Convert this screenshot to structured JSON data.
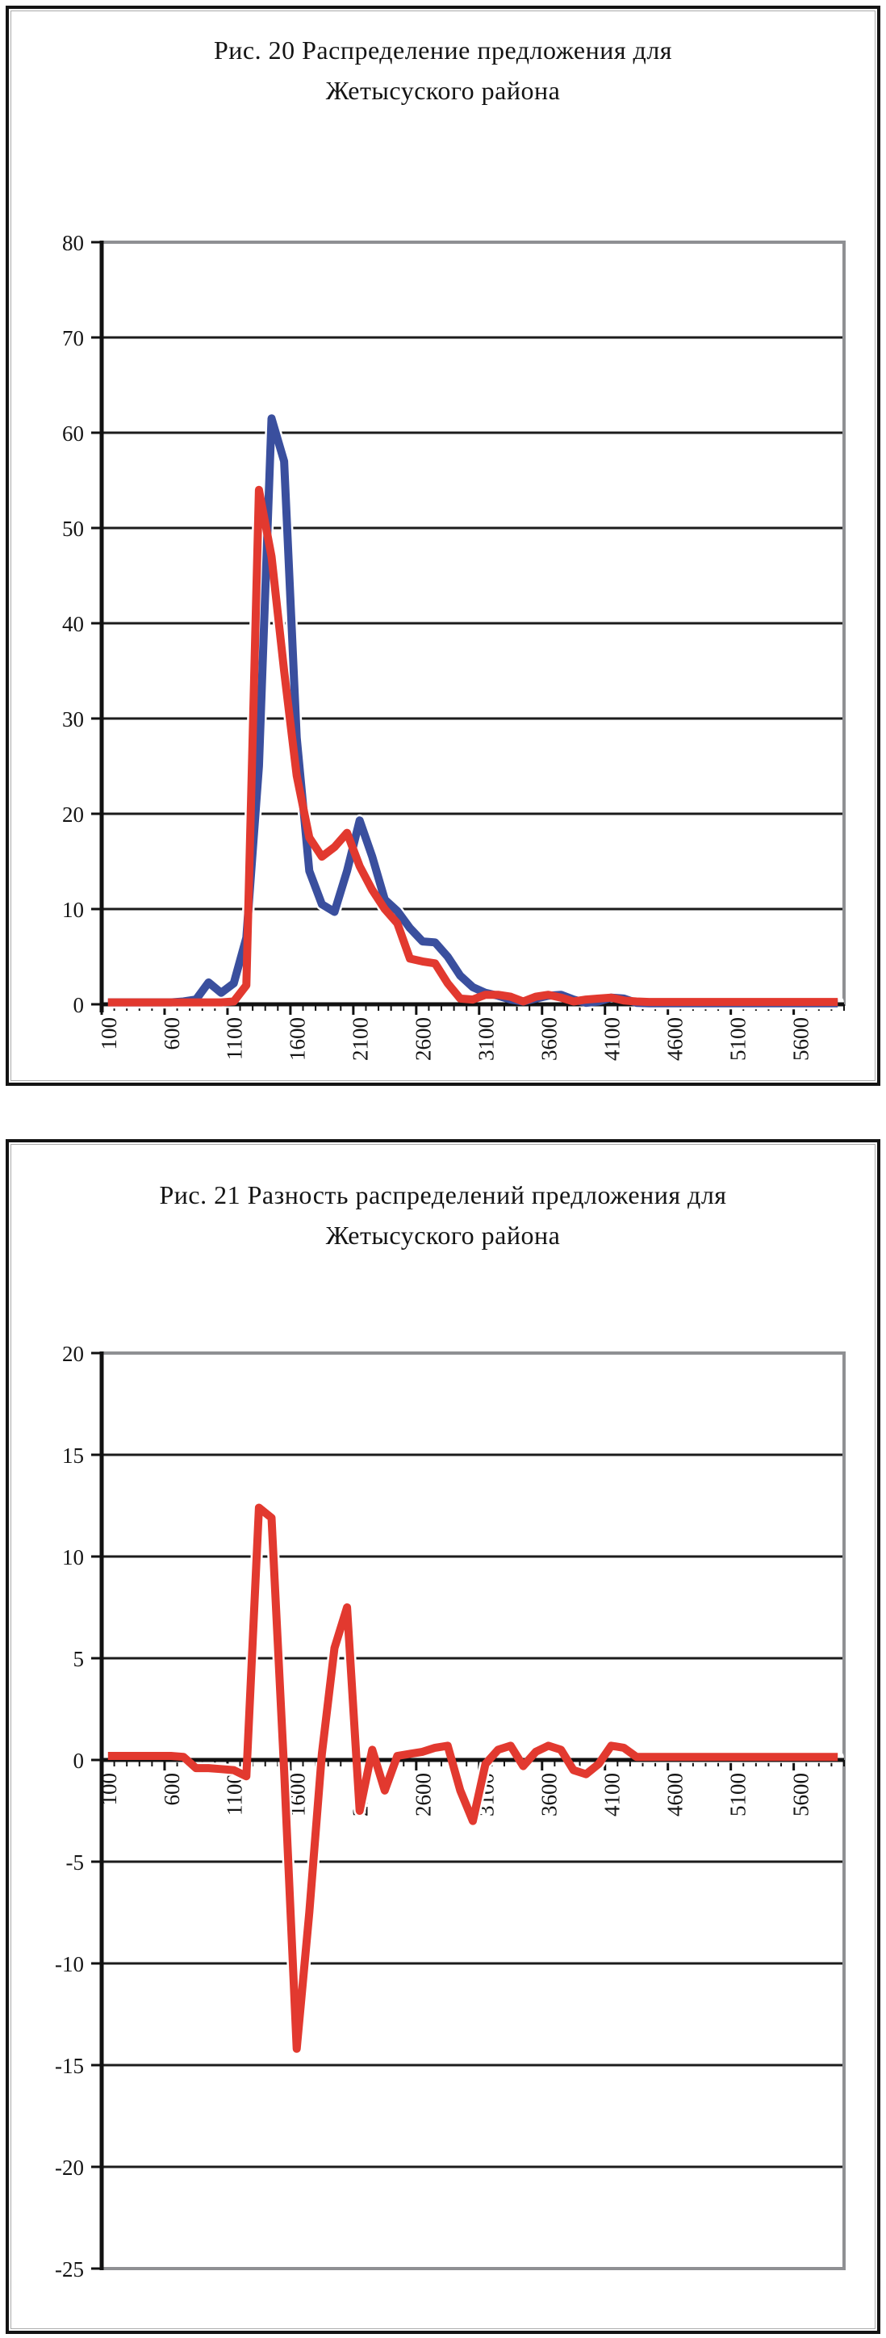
{
  "page": {
    "background": "#ffffff"
  },
  "colors": {
    "series_blue": "#3a4f9e",
    "series_red": "#e2392f",
    "line_casing": "#ffffff",
    "gridline": "#1c1c1c",
    "axis": "#111111",
    "border_gray": "#8f9093",
    "text": "#141414"
  },
  "figures": [
    {
      "title_line1": "Рис. 20 Распределение предложения для",
      "title_line2": "Жетысуского района"
    },
    {
      "title_line1": "Рис. 21 Разность распределений предложения для",
      "title_line2": "Жетысуского района"
    }
  ],
  "chart_data": [
    {
      "type": "line",
      "title": "Рис. 20 Распределение предложения для Жетысуского района",
      "xlabel": "",
      "ylabel": "",
      "x_start": 100,
      "x_step": 100,
      "x_end": 5900,
      "x_tick_labels": [
        "100",
        "600",
        "1100",
        "1600",
        "2100",
        "2600",
        "3100",
        "3600",
        "4100",
        "4600",
        "5100",
        "5600"
      ],
      "ylim": [
        0,
        80
      ],
      "y_tick_step": 10,
      "y_tick_labels": [
        "80",
        "70",
        "60",
        "50",
        "40",
        "30",
        "20",
        "10",
        "0"
      ],
      "grid": true,
      "legend": "none",
      "series": [
        {
          "name": "blue-distribution",
          "color": "#3a4f9e",
          "values": [
            0.2,
            0.2,
            0.2,
            0.2,
            0.2,
            0.2,
            0.3,
            0.5,
            2.3,
            1.2,
            2.2,
            7,
            25,
            61.5,
            57,
            28,
            14,
            10.5,
            9.7,
            14,
            19.3,
            15.5,
            11,
            9.8,
            8,
            6.6,
            6.5,
            5,
            3,
            1.8,
            1.2,
            0.9,
            0.5,
            0.3,
            0.6,
            0.9,
            1,
            0.5,
            0.15,
            0.3,
            0.7,
            0.6,
            0.15,
            0.1,
            0.1,
            0.1,
            0.1,
            0.1,
            0.1,
            0.1,
            0.1,
            0.1,
            0.1,
            0.1,
            0.1,
            0.1,
            0.1,
            0.1,
            0.1
          ]
        },
        {
          "name": "red-distribution",
          "color": "#e2392f",
          "values": [
            0.2,
            0.2,
            0.2,
            0.2,
            0.2,
            0.2,
            0.2,
            0.2,
            0.2,
            0.2,
            0.3,
            2,
            54,
            47,
            35,
            24,
            17.5,
            15.5,
            16.5,
            18,
            14.5,
            12,
            10,
            8.5,
            4.8,
            4.5,
            4.3,
            2.2,
            0.6,
            0.5,
            1,
            1,
            0.8,
            0.3,
            0.8,
            1,
            0.7,
            0.3,
            0.5,
            0.6,
            0.7,
            0.4,
            0.3,
            0.25,
            0.25,
            0.25,
            0.25,
            0.25,
            0.25,
            0.25,
            0.25,
            0.25,
            0.25,
            0.25,
            0.25,
            0.25,
            0.25,
            0.25,
            0.25
          ]
        }
      ]
    },
    {
      "type": "line",
      "title": "Рис. 21 Разность распределений предложения для Жетысуского района",
      "xlabel": "",
      "ylabel": "",
      "x_start": 100,
      "x_step": 100,
      "x_end": 5900,
      "x_tick_labels": [
        "100",
        "600",
        "1100",
        "1600",
        "2100",
        "2600",
        "3100",
        "3600",
        "4100",
        "4600",
        "5100",
        "5600"
      ],
      "ylim": [
        -25,
        20
      ],
      "y_tick_step": 5,
      "y_tick_labels": [
        "20",
        "15",
        "10",
        "5",
        "0",
        "-5",
        "-10",
        "-15",
        "-20",
        "-25"
      ],
      "grid": true,
      "legend": "none",
      "series": [
        {
          "name": "red-difference",
          "color": "#e2392f",
          "values": [
            0.2,
            0.2,
            0.2,
            0.2,
            0.2,
            0.2,
            0.15,
            -0.4,
            -0.4,
            -0.45,
            -0.5,
            -0.8,
            12.4,
            11.9,
            -0.5,
            -14.2,
            -7.5,
            0.3,
            5.5,
            7.5,
            -2.5,
            0.5,
            -1.5,
            0.2,
            0.3,
            0.4,
            0.6,
            0.7,
            -1.5,
            -3,
            -0.2,
            0.5,
            0.7,
            -0.3,
            0.4,
            0.7,
            0.5,
            -0.5,
            -0.7,
            -0.2,
            0.7,
            0.6,
            0.15,
            0.15,
            0.15,
            0.15,
            0.15,
            0.15,
            0.15,
            0.15,
            0.15,
            0.15,
            0.15,
            0.15,
            0.15,
            0.15,
            0.15,
            0.15,
            0.15
          ]
        }
      ]
    }
  ]
}
